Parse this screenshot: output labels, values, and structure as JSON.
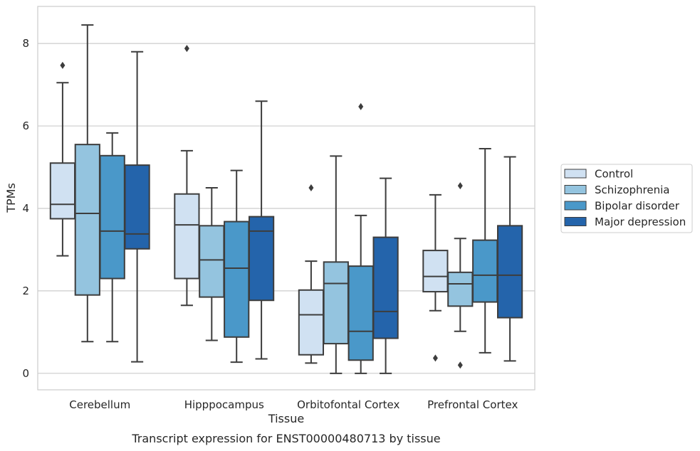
{
  "caption": "Transcript expression for ENST00000480713 by tissue",
  "chart_data": {
    "type": "box",
    "xlabel": "Tissue",
    "ylabel": "TPMs",
    "ylim": [
      -0.4,
      8.9
    ],
    "yticks": [
      0,
      2,
      4,
      6,
      8
    ],
    "grid": "horizontal",
    "legend_position": "right",
    "categories": [
      "Cerebellum",
      "Hipppocampus",
      "Orbitofontal Cortex",
      "Prefrontal Cortex"
    ],
    "series": [
      {
        "name": "Control",
        "color": "#d0e1f2",
        "boxes": [
          {
            "whisker_low": 2.85,
            "q1": 3.75,
            "median": 4.1,
            "q3": 5.1,
            "whisker_high": 7.05,
            "outliers": [
              7.47
            ]
          },
          {
            "whisker_low": 1.65,
            "q1": 2.3,
            "median": 3.6,
            "q3": 4.35,
            "whisker_high": 5.4,
            "outliers": [
              7.88
            ]
          },
          {
            "whisker_low": 0.25,
            "q1": 0.45,
            "median": 1.42,
            "q3": 2.02,
            "whisker_high": 2.72,
            "outliers": [
              4.5
            ]
          },
          {
            "whisker_low": 1.52,
            "q1": 1.98,
            "median": 2.35,
            "q3": 2.98,
            "whisker_high": 4.33,
            "outliers": [
              0.37
            ]
          }
        ]
      },
      {
        "name": "Schizophrenia",
        "color": "#94c4df",
        "boxes": [
          {
            "whisker_low": 0.77,
            "q1": 1.9,
            "median": 3.88,
            "q3": 5.55,
            "whisker_high": 8.45,
            "outliers": []
          },
          {
            "whisker_low": 0.8,
            "q1": 1.85,
            "median": 2.75,
            "q3": 3.58,
            "whisker_high": 4.5,
            "outliers": []
          },
          {
            "whisker_low": 0.0,
            "q1": 0.72,
            "median": 2.18,
            "q3": 2.7,
            "whisker_high": 5.27,
            "outliers": []
          },
          {
            "whisker_low": 1.02,
            "q1": 1.63,
            "median": 2.17,
            "q3": 2.45,
            "whisker_high": 3.27,
            "outliers": [
              4.55,
              0.2
            ]
          }
        ]
      },
      {
        "name": "Bipolar disorder",
        "color": "#4a98c9",
        "boxes": [
          {
            "whisker_low": 0.77,
            "q1": 2.3,
            "median": 3.45,
            "q3": 5.28,
            "whisker_high": 5.83,
            "outliers": []
          },
          {
            "whisker_low": 0.27,
            "q1": 0.88,
            "median": 2.55,
            "q3": 3.68,
            "whisker_high": 4.92,
            "outliers": []
          },
          {
            "whisker_low": 0.0,
            "q1": 0.32,
            "median": 1.02,
            "q3": 2.6,
            "whisker_high": 3.83,
            "outliers": [
              6.47
            ]
          },
          {
            "whisker_low": 0.5,
            "q1": 1.73,
            "median": 2.38,
            "q3": 3.23,
            "whisker_high": 5.45,
            "outliers": []
          }
        ]
      },
      {
        "name": "Major depression",
        "color": "#2464ab",
        "boxes": [
          {
            "whisker_low": 0.28,
            "q1": 3.02,
            "median": 3.38,
            "q3": 5.05,
            "whisker_high": 7.8,
            "outliers": []
          },
          {
            "whisker_low": 0.35,
            "q1": 1.77,
            "median": 3.45,
            "q3": 3.8,
            "whisker_high": 6.6,
            "outliers": []
          },
          {
            "whisker_low": 0.0,
            "q1": 0.85,
            "median": 1.5,
            "q3": 3.3,
            "whisker_high": 4.73,
            "outliers": []
          },
          {
            "whisker_low": 0.3,
            "q1": 1.35,
            "median": 2.38,
            "q3": 3.58,
            "whisker_high": 5.25,
            "outliers": []
          }
        ]
      }
    ]
  }
}
